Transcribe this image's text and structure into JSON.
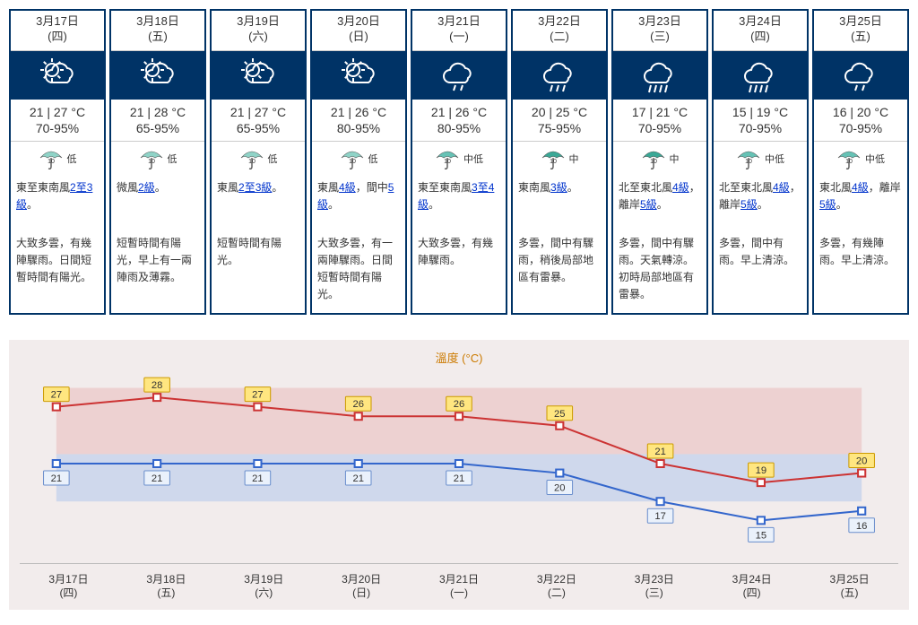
{
  "colors": {
    "card_border": "#003366",
    "icon_bg": "#003366",
    "link": "#0033cc",
    "chart_bg": "#f2ecec",
    "chart_title": "#cc7a00",
    "high_line": "#cc3333",
    "low_line": "#3366cc",
    "high_band": "#edd1d1",
    "low_band": "#cfd8ec",
    "high_label_fill": "#ffe680",
    "high_label_stroke": "#cc9a00",
    "low_label_fill": "#eaf1fb",
    "low_label_stroke": "#6a8ecc",
    "axis": "#bbbbbb"
  },
  "chart": {
    "title": "溫度 (°C)",
    "ymin": 12,
    "ymax": 30,
    "band_high": [
      22,
      29
    ],
    "band_low": [
      17,
      22
    ],
    "high_series": [
      27,
      28,
      27,
      26,
      26,
      25,
      21,
      19,
      20
    ],
    "low_series": [
      21,
      21,
      21,
      21,
      21,
      20,
      17,
      15,
      16
    ]
  },
  "days": [
    {
      "date_line1": "3月17日",
      "date_line2": "(四)",
      "icon": "partly_cloudy",
      "temp": "21 | 27 °C",
      "humidity": "70-95%",
      "umb_label": "低",
      "wind_pre": "東至東南風",
      "wind_link": "2至3級",
      "wind_post": "。",
      "desc": "大致多雲，有幾陣驟雨。日間短暫時間有陽光。"
    },
    {
      "date_line1": "3月18日",
      "date_line2": "(五)",
      "icon": "sun_cloud",
      "temp": "21 | 28 °C",
      "humidity": "65-95%",
      "umb_label": "低",
      "wind_pre": "微風",
      "wind_link": "2級",
      "wind_post": "。",
      "desc": "短暫時間有陽光，早上有一兩陣雨及薄霧。"
    },
    {
      "date_line1": "3月19日",
      "date_line2": "(六)",
      "icon": "sun_cloud",
      "temp": "21 | 27 °C",
      "humidity": "65-95%",
      "umb_label": "低",
      "wind_pre": "東風",
      "wind_link": "2至3級",
      "wind_post": "。",
      "desc": "短暫時間有陽光。"
    },
    {
      "date_line1": "3月20日",
      "date_line2": "(日)",
      "icon": "sun_cloud",
      "temp": "21 | 26 °C",
      "humidity": "80-95%",
      "umb_label": "低",
      "wind_pre": "東風",
      "wind_link": "4級",
      "wind_post": "，間中",
      "wind_link2": "5級",
      "wind_post2": "。",
      "desc": "大致多雲，有一兩陣驟雨。日間短暫時間有陽光。"
    },
    {
      "date_line1": "3月21日",
      "date_line2": "(一)",
      "icon": "cloud_rain_light",
      "temp": "21 | 26 °C",
      "humidity": "80-95%",
      "umb_label": "中低",
      "wind_pre": "東至東南風",
      "wind_link": "3至4級",
      "wind_post": "。",
      "desc": "大致多雲，有幾陣驟雨。"
    },
    {
      "date_line1": "3月22日",
      "date_line2": "(二)",
      "icon": "cloud_rain",
      "temp": "20 | 25 °C",
      "humidity": "75-95%",
      "umb_label": "中",
      "wind_pre": "東南風",
      "wind_link": "3級",
      "wind_post": "。",
      "desc": "多雲，間中有驟雨，稍後局部地區有雷暴。"
    },
    {
      "date_line1": "3月23日",
      "date_line2": "(三)",
      "icon": "cloud_rain_heavy",
      "temp": "17 | 21 °C",
      "humidity": "70-95%",
      "umb_label": "中",
      "wind_pre": "北至東北風",
      "wind_link": "4級",
      "wind_post": "，離岸",
      "wind_link2": "5級",
      "wind_post2": "。",
      "desc": "多雲，間中有驟雨。天氣轉涼。初時局部地區有雷暴。"
    },
    {
      "date_line1": "3月24日",
      "date_line2": "(四)",
      "icon": "cloud_rain_heavy",
      "temp": "15 | 19 °C",
      "humidity": "70-95%",
      "umb_label": "中低",
      "wind_pre": "北至東北風",
      "wind_link": "4級",
      "wind_post": "，離岸",
      "wind_link2": "5級",
      "wind_post2": "。",
      "desc": "多雲，間中有雨。早上清涼。"
    },
    {
      "date_line1": "3月25日",
      "date_line2": "(五)",
      "icon": "cloud_rain_light",
      "temp": "16 | 20 °C",
      "humidity": "70-95%",
      "umb_label": "中低",
      "wind_pre": "東北風",
      "wind_link": "4級",
      "wind_post": "，離岸",
      "wind_link2": "5級",
      "wind_post2": "。",
      "desc": "多雲，有幾陣雨。早上清涼。"
    }
  ]
}
